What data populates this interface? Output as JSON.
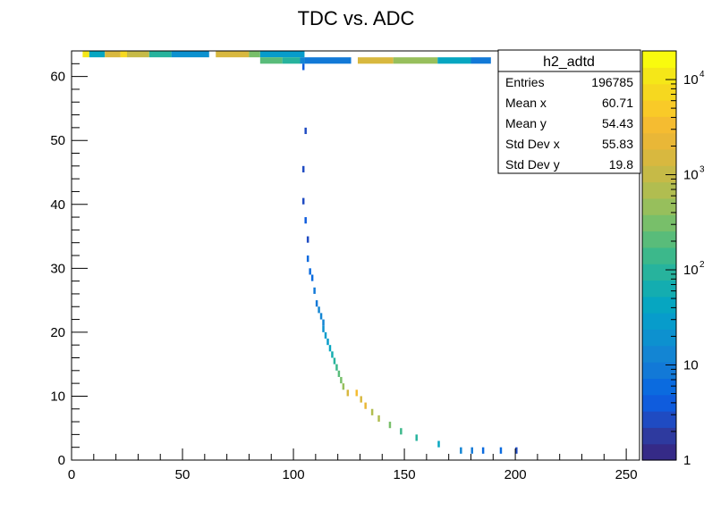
{
  "chart_data": {
    "type": "heatmap",
    "title": "TDC vs. ADC",
    "xlabel": "",
    "ylabel": "",
    "xlim": [
      0,
      256
    ],
    "ylim": [
      0,
      64
    ],
    "x_ticks": [
      "0",
      "50",
      "100",
      "150",
      "200",
      "250"
    ],
    "y_ticks": [
      "0",
      "10",
      "20",
      "30",
      "40",
      "50",
      "60"
    ],
    "x_tick_values": [
      0,
      50,
      100,
      150,
      200,
      250
    ],
    "y_tick_values": [
      0,
      10,
      20,
      30,
      40,
      50,
      60
    ],
    "z_scale": "log",
    "zlim": [
      1,
      20000
    ],
    "colorbar_labels": [
      {
        "base": "1",
        "exp": "",
        "value": 1
      },
      {
        "base": "10",
        "exp": "",
        "value": 10
      },
      {
        "base": "10",
        "exp": "2",
        "value": 100
      },
      {
        "base": "10",
        "exp": "3",
        "value": 1000
      },
      {
        "base": "10",
        "exp": "4",
        "value": 10000
      }
    ],
    "segments": [
      {
        "x": [
          5,
          8
        ],
        "y": 63,
        "z": 10000
      },
      {
        "x": [
          8,
          15
        ],
        "y": 63,
        "z": 40
      },
      {
        "x": [
          15,
          22
        ],
        "y": 63,
        "z": 1500
      },
      {
        "x": [
          22,
          25
        ],
        "y": 63,
        "z": 8000
      },
      {
        "x": [
          25,
          35
        ],
        "y": 63,
        "z": 1200
      },
      {
        "x": [
          35,
          45
        ],
        "y": 63,
        "z": 100
      },
      {
        "x": [
          45,
          62
        ],
        "y": 63,
        "z": 20
      },
      {
        "x": [
          65,
          80
        ],
        "y": 63,
        "z": 1500
      },
      {
        "x": [
          80,
          85
        ],
        "y": 63,
        "z": 300
      },
      {
        "x": [
          85,
          105
        ],
        "y": 63,
        "z": 25
      },
      {
        "x": [
          85,
          95
        ],
        "y": 62,
        "z": 250
      },
      {
        "x": [
          95,
          103
        ],
        "y": 62,
        "z": 100
      },
      {
        "x": [
          103,
          105
        ],
        "y": 62,
        "z": 15
      },
      {
        "x": [
          105,
          126
        ],
        "y": 62,
        "z": 8
      },
      {
        "x": [
          129,
          145
        ],
        "y": 62,
        "z": 1500
      },
      {
        "x": [
          145,
          165
        ],
        "y": 62,
        "z": 500
      },
      {
        "x": [
          165,
          180
        ],
        "y": 62,
        "z": 40
      },
      {
        "x": [
          180,
          189
        ],
        "y": 62,
        "z": 8
      }
    ],
    "cells": [
      [
        104,
        61,
        4
      ],
      [
        105,
        51,
        3
      ],
      [
        104,
        45,
        3
      ],
      [
        104,
        40,
        3
      ],
      [
        105,
        37,
        4
      ],
      [
        106,
        34,
        3
      ],
      [
        106,
        31,
        5
      ],
      [
        107,
        29,
        6
      ],
      [
        108,
        28,
        6
      ],
      [
        109,
        26,
        8
      ],
      [
        110,
        24,
        10
      ],
      [
        111,
        23,
        12
      ],
      [
        112,
        22,
        14
      ],
      [
        113,
        21,
        16
      ],
      [
        113,
        20,
        20
      ],
      [
        114,
        19,
        25
      ],
      [
        115,
        18,
        30
      ],
      [
        116,
        17,
        40
      ],
      [
        117,
        16,
        60
      ],
      [
        118,
        15,
        100
      ],
      [
        119,
        14,
        150
      ],
      [
        120,
        13,
        200
      ],
      [
        121,
        12,
        300
      ],
      [
        122,
        11,
        500
      ],
      [
        124,
        10,
        1500
      ],
      [
        128,
        10,
        3000
      ],
      [
        130,
        9,
        1500
      ],
      [
        132,
        8,
        2000
      ],
      [
        135,
        7,
        800
      ],
      [
        138,
        6,
        600
      ],
      [
        143,
        5,
        300
      ],
      [
        148,
        4,
        150
      ],
      [
        155,
        3,
        100
      ],
      [
        165,
        2,
        40
      ],
      [
        175,
        1,
        15
      ],
      [
        180,
        1,
        8
      ],
      [
        185,
        1,
        6
      ],
      [
        193,
        1,
        5
      ],
      [
        200,
        1,
        3
      ]
    ],
    "stats": {
      "name": "h2_adtd",
      "rows": [
        {
          "label": "Entries",
          "value": "196785"
        },
        {
          "label": "Mean x",
          "value": "60.71"
        },
        {
          "label": "Mean y",
          "value": "54.43"
        },
        {
          "label": "Std Dev x",
          "value": "55.83"
        },
        {
          "label": "Std Dev y",
          "value": "19.8"
        }
      ]
    },
    "palette": [
      "#352a87",
      "#2e3a9f",
      "#1f4bc2",
      "#0f5cdd",
      "#0b6bdf",
      "#1279d7",
      "#1385d3",
      "#0d91cf",
      "#079ccb",
      "#06a6c1",
      "#14adb0",
      "#27b39d",
      "#3cb88b",
      "#59bc7a",
      "#78bf6a",
      "#97bf5c",
      "#b1bd50",
      "#c6ba47",
      "#d8b83f",
      "#e9b737",
      "#f5bc31",
      "#f9ca28",
      "#f6d81f",
      "#f5e718",
      "#f9fb0e"
    ]
  }
}
